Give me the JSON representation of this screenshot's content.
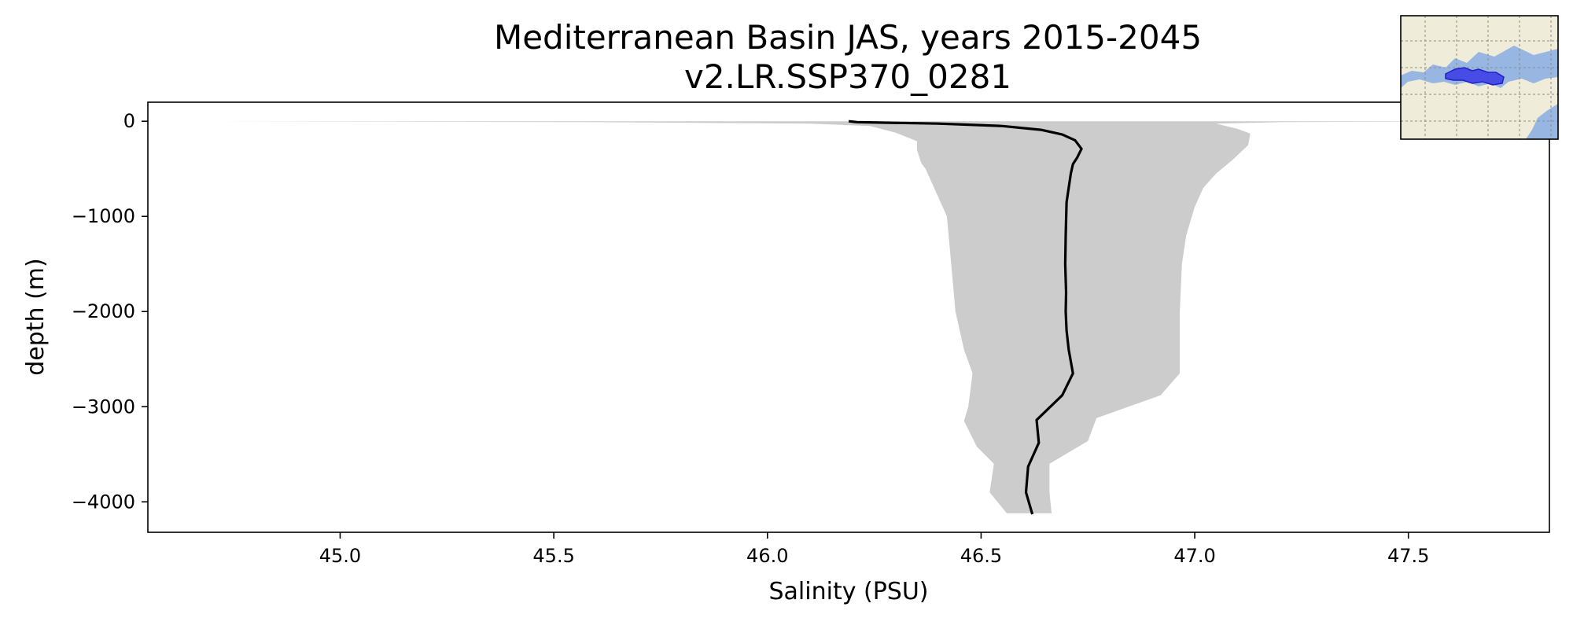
{
  "chart_data": {
    "type": "line",
    "title": "Mediterranean Basin JAS, years 2015-2045",
    "subtitle": "v2.LR.SSP370_0281",
    "xlabel": "Salinity (PSU)",
    "ylabel": "depth (m)",
    "xlim": [
      44.55,
      47.83
    ],
    "ylim": [
      -4320,
      200
    ],
    "xticks": [
      45.0,
      45.5,
      46.0,
      46.5,
      47.0,
      47.5
    ],
    "xtick_labels": [
      "45.0",
      "45.5",
      "46.0",
      "46.5",
      "47.0",
      "47.5"
    ],
    "yticks": [
      0,
      -1000,
      -2000,
      -3000,
      -4000
    ],
    "ytick_labels": [
      "0",
      "−1000",
      "−2000",
      "−3000",
      "−4000"
    ],
    "grid": false,
    "series": [
      {
        "role": "mean profile",
        "color": "#000000",
        "points": [
          {
            "x": 46.19,
            "y": 0
          },
          {
            "x": 46.21,
            "y": -10
          },
          {
            "x": 46.4,
            "y": -25
          },
          {
            "x": 46.55,
            "y": -50
          },
          {
            "x": 46.64,
            "y": -90
          },
          {
            "x": 46.69,
            "y": -140
          },
          {
            "x": 46.72,
            "y": -200
          },
          {
            "x": 46.735,
            "y": -290
          },
          {
            "x": 46.725,
            "y": -380
          },
          {
            "x": 46.715,
            "y": -450
          },
          {
            "x": 46.71,
            "y": -550
          },
          {
            "x": 46.7,
            "y": -850
          },
          {
            "x": 46.698,
            "y": -1200
          },
          {
            "x": 46.697,
            "y": -1500
          },
          {
            "x": 46.699,
            "y": -1800
          },
          {
            "x": 46.698,
            "y": -2000
          },
          {
            "x": 46.7,
            "y": -2200
          },
          {
            "x": 46.705,
            "y": -2400
          },
          {
            "x": 46.715,
            "y": -2650
          },
          {
            "x": 46.69,
            "y": -2880
          },
          {
            "x": 46.63,
            "y": -3140
          },
          {
            "x": 46.635,
            "y": -3380
          },
          {
            "x": 46.61,
            "y": -3630
          },
          {
            "x": 46.605,
            "y": -3900
          },
          {
            "x": 46.62,
            "y": -4130
          }
        ]
      },
      {
        "role": "min-max range",
        "color": "#cccccc",
        "points_low": [
          {
            "x": 44.7,
            "y": 0
          },
          {
            "x": 45.6,
            "y": -10
          },
          {
            "x": 46.1,
            "y": -25
          },
          {
            "x": 46.24,
            "y": -50
          },
          {
            "x": 46.3,
            "y": -120
          },
          {
            "x": 46.35,
            "y": -210
          },
          {
            "x": 46.35,
            "y": -300
          },
          {
            "x": 46.36,
            "y": -440
          },
          {
            "x": 46.37,
            "y": -500
          },
          {
            "x": 46.4,
            "y": -800
          },
          {
            "x": 46.42,
            "y": -1000
          },
          {
            "x": 46.43,
            "y": -1500
          },
          {
            "x": 46.44,
            "y": -2000
          },
          {
            "x": 46.46,
            "y": -2400
          },
          {
            "x": 46.48,
            "y": -2650
          },
          {
            "x": 46.47,
            "y": -3000
          },
          {
            "x": 46.46,
            "y": -3150
          },
          {
            "x": 46.49,
            "y": -3420
          },
          {
            "x": 46.53,
            "y": -3600
          },
          {
            "x": 46.52,
            "y": -3900
          },
          {
            "x": 46.56,
            "y": -4120
          }
        ],
        "points_high": [
          {
            "x": 47.7,
            "y": 0
          },
          {
            "x": 47.2,
            "y": -10
          },
          {
            "x": 47.05,
            "y": -25
          },
          {
            "x": 47.1,
            "y": -80
          },
          {
            "x": 47.13,
            "y": -130
          },
          {
            "x": 47.125,
            "y": -250
          },
          {
            "x": 47.09,
            "y": -400
          },
          {
            "x": 47.05,
            "y": -550
          },
          {
            "x": 47.02,
            "y": -700
          },
          {
            "x": 47.0,
            "y": -900
          },
          {
            "x": 46.98,
            "y": -1200
          },
          {
            "x": 46.97,
            "y": -1500
          },
          {
            "x": 46.965,
            "y": -2000
          },
          {
            "x": 46.965,
            "y": -2650
          },
          {
            "x": 46.92,
            "y": -2880
          },
          {
            "x": 46.77,
            "y": -3120
          },
          {
            "x": 46.75,
            "y": -3360
          },
          {
            "x": 46.66,
            "y": -3600
          },
          {
            "x": 46.66,
            "y": -3900
          },
          {
            "x": 46.665,
            "y": -4120
          }
        ]
      }
    ]
  },
  "inset_map": {
    "region": "Mediterranean Sea",
    "land_color": "#efecd9",
    "ocean_color": "#97b6e1",
    "highlight_color": "#3a3ae8"
  }
}
